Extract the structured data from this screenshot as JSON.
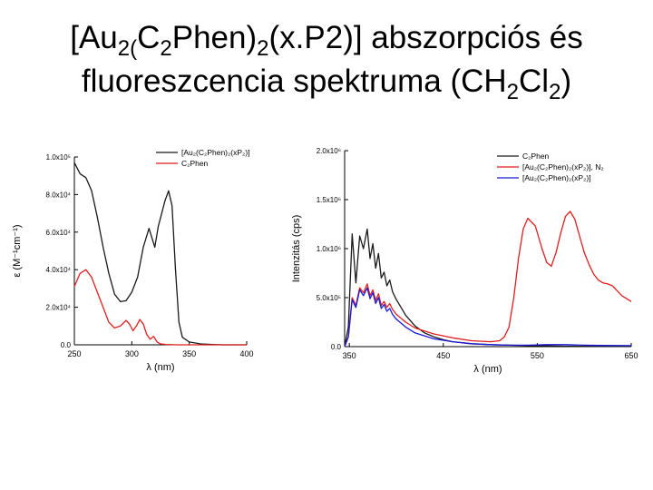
{
  "title": {
    "line1": [
      {
        "t": "[Au"
      },
      {
        "t": "2(",
        "sub": true
      },
      {
        "t": "C"
      },
      {
        "t": "2",
        "sub": true
      },
      {
        "t": "Phen)"
      },
      {
        "t": "2",
        "sub": true
      },
      {
        "t": "(x.P2)] abszorpciós és"
      }
    ],
    "line2": [
      {
        "t": "fluoreszcencia spektruma (CH"
      },
      {
        "t": "2",
        "sub": true
      },
      {
        "t": "Cl"
      },
      {
        "t": "2",
        "sub": true
      },
      {
        "t": ")"
      }
    ]
  },
  "colors": {
    "black": "#1a1a1a",
    "red": "#e01e1e",
    "blue": "#1a1ad6"
  },
  "chart_data": [
    {
      "type": "line",
      "xlabel": "λ (nm)",
      "ylabel": "ε (M⁻¹cm⁻¹)",
      "xlim": [
        250,
        400
      ],
      "ylim": [
        0,
        100000
      ],
      "x_ticks": [
        250,
        300,
        350,
        400
      ],
      "y_ticks": [
        {
          "v": 0,
          "label": "0.0"
        },
        {
          "v": 20000,
          "label": "2.0x10⁴"
        },
        {
          "v": 40000,
          "label": "4.0x10⁴"
        },
        {
          "v": 60000,
          "label": "6.0x10⁴"
        },
        {
          "v": 80000,
          "label": "8.0x10⁴"
        },
        {
          "v": 100000,
          "label": "1.0x10⁵"
        }
      ],
      "legend_position": "top-right",
      "series": [
        {
          "name": "[Au₂(C₂Phen)₂(xP₂)]",
          "color": "black",
          "x": [
            250,
            255,
            260,
            265,
            270,
            275,
            280,
            285,
            290,
            295,
            300,
            305,
            310,
            315,
            320,
            323,
            326,
            329,
            332,
            335,
            338,
            341,
            344,
            350,
            360,
            370,
            380,
            390,
            400
          ],
          "y": [
            97000,
            91000,
            89000,
            82000,
            68000,
            52000,
            38000,
            27000,
            23000,
            23500,
            28000,
            36000,
            52000,
            62000,
            52000,
            63000,
            70000,
            77000,
            82000,
            74000,
            40000,
            12000,
            4000,
            1500,
            500,
            200,
            0,
            0,
            0
          ]
        },
        {
          "name": "C₂Phen",
          "color": "red",
          "x": [
            250,
            255,
            260,
            265,
            270,
            275,
            280,
            285,
            290,
            295,
            298,
            301,
            304,
            307,
            310,
            313,
            316,
            319,
            322,
            325,
            330,
            340,
            360,
            400
          ],
          "y": [
            31000,
            38000,
            40000,
            36000,
            28000,
            20000,
            12000,
            9000,
            10000,
            13000,
            11000,
            7500,
            10000,
            13500,
            11000,
            5500,
            3000,
            4500,
            1500,
            500,
            200,
            0,
            0,
            0
          ]
        }
      ]
    },
    {
      "type": "line",
      "xlabel": "λ (nm)",
      "ylabel": "Intenzitás (cps)",
      "xlim": [
        345,
        650
      ],
      "ylim": [
        0,
        2000000
      ],
      "x_ticks": [
        350,
        450,
        550,
        650
      ],
      "y_ticks": [
        {
          "v": 0,
          "label": "0.0"
        },
        {
          "v": 500000,
          "label": "5.0x10⁵"
        },
        {
          "v": 1000000,
          "label": "1.0x10⁶"
        },
        {
          "v": 1500000,
          "label": "1.5x10⁶"
        },
        {
          "v": 2000000,
          "label": "2.0x10⁶"
        }
      ],
      "legend_position": "top-right",
      "series": [
        {
          "name": "C₂Phen",
          "color": "black",
          "x": [
            345,
            349,
            353,
            357,
            361,
            365,
            369,
            372,
            375,
            378,
            381,
            384,
            387,
            390,
            393,
            396,
            400,
            405,
            410,
            420,
            430,
            440,
            450,
            460,
            470,
            480,
            500,
            520,
            540,
            560,
            580,
            600,
            620,
            650
          ],
          "y": [
            0,
            200000,
            1150000,
            650000,
            1130000,
            1000000,
            1200000,
            900000,
            1050000,
            800000,
            950000,
            700000,
            760000,
            620000,
            680000,
            560000,
            480000,
            400000,
            320000,
            210000,
            140000,
            100000,
            70000,
            50000,
            40000,
            30000,
            20000,
            15000,
            10000,
            8000,
            5000,
            4000,
            3000,
            2000
          ]
        },
        {
          "name": "[Au₂(C₂Phen)₂(xP₂)], N₂",
          "color": "red",
          "x": [
            345,
            349,
            353,
            357,
            361,
            365,
            369,
            372,
            375,
            378,
            381,
            384,
            387,
            390,
            393,
            396,
            400,
            405,
            410,
            420,
            440,
            460,
            480,
            500,
            510,
            515,
            520,
            525,
            530,
            535,
            540,
            548,
            555,
            560,
            565,
            570,
            575,
            580,
            585,
            590,
            595,
            600,
            605,
            610,
            615,
            620,
            625,
            630,
            635,
            640,
            650
          ],
          "y": [
            0,
            100000,
            500000,
            420000,
            600000,
            550000,
            640000,
            520000,
            580000,
            470000,
            540000,
            420000,
            460000,
            400000,
            440000,
            380000,
            330000,
            290000,
            250000,
            190000,
            130000,
            90000,
            60000,
            50000,
            60000,
            100000,
            200000,
            500000,
            900000,
            1200000,
            1310000,
            1230000,
            1000000,
            860000,
            820000,
            960000,
            1160000,
            1330000,
            1380000,
            1300000,
            1130000,
            960000,
            840000,
            740000,
            680000,
            650000,
            640000,
            620000,
            570000,
            520000,
            460000
          ]
        },
        {
          "name": "[Au₂(C₂Phen)₂(xP₂)]",
          "color": "blue",
          "x": [
            345,
            349,
            353,
            357,
            361,
            365,
            369,
            372,
            375,
            378,
            381,
            384,
            387,
            390,
            393,
            396,
            400,
            410,
            420,
            440,
            460,
            480,
            500,
            520,
            540,
            560,
            580,
            600,
            620,
            650
          ],
          "y": [
            0,
            100000,
            480000,
            400000,
            580000,
            520000,
            600000,
            490000,
            550000,
            440000,
            500000,
            390000,
            430000,
            360000,
            390000,
            330000,
            280000,
            200000,
            140000,
            80000,
            50000,
            30000,
            20000,
            15000,
            15000,
            20000,
            20000,
            15000,
            12000,
            10000
          ]
        }
      ]
    }
  ]
}
